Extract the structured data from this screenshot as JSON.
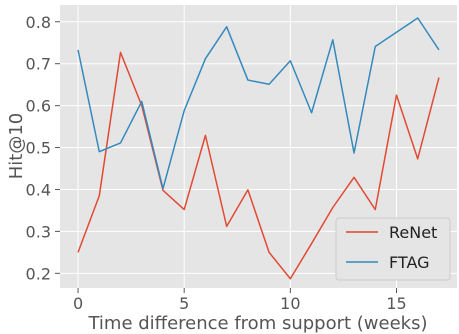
{
  "chart_data": {
    "type": "line",
    "title": "",
    "xlabel": "Time difference from support (weeks)",
    "ylabel": "Hit@10",
    "x": [
      0,
      1,
      2,
      3,
      4,
      5,
      6,
      7,
      8,
      9,
      10,
      11,
      12,
      13,
      14,
      15,
      16,
      17
    ],
    "xlim": [
      -0.85,
      17.85
    ],
    "ylim": [
      0.165,
      0.84
    ],
    "xticks": [
      0,
      5,
      10,
      15
    ],
    "yticks": [
      0.2,
      0.3,
      0.4,
      0.5,
      0.6,
      0.7,
      0.8
    ],
    "xtick_labels": [
      "0",
      "5",
      "10",
      "15"
    ],
    "ytick_labels": [
      "0.2",
      "0.3",
      "0.4",
      "0.5",
      "0.6",
      "0.7",
      "0.8"
    ],
    "grid": true,
    "legend_position": "bottom-right",
    "series": [
      {
        "name": "ReNet",
        "color": "#E24A33",
        "values": [
          0.25,
          0.385,
          0.727,
          0.6,
          0.398,
          0.352,
          0.529,
          0.312,
          0.399,
          0.25,
          0.187,
          0.271,
          0.357,
          0.429,
          0.352,
          0.625,
          0.473,
          0.667
        ]
      },
      {
        "name": "FTAG",
        "color": "#348ABD",
        "values": [
          0.733,
          0.49,
          0.511,
          0.61,
          0.402,
          0.588,
          0.712,
          0.788,
          0.661,
          0.651,
          0.707,
          0.583,
          0.757,
          0.487,
          0.741,
          0.775,
          0.809,
          0.733
        ]
      }
    ]
  }
}
